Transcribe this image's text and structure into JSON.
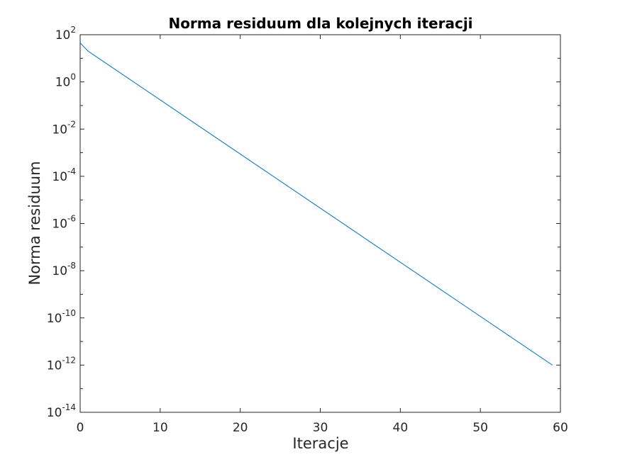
{
  "chart_data": {
    "type": "line",
    "title": "Norma residuum dla kolejnych iteracji",
    "xlabel": "Iteracje",
    "ylabel": "Norma residuum",
    "xlim": [
      0,
      60
    ],
    "ylim": [
      1e-14,
      100
    ],
    "yscale": "log",
    "grid": false,
    "legend": "none",
    "x_ticks": [
      0,
      10,
      20,
      30,
      40,
      50,
      60
    ],
    "y_ticks": [
      {
        "base": "10",
        "exp": "2",
        "value": 100
      },
      {
        "base": "10",
        "exp": "0",
        "value": 1
      },
      {
        "base": "10",
        "exp": "-2",
        "value": 0.01
      },
      {
        "base": "10",
        "exp": "-4",
        "value": 0.0001
      },
      {
        "base": "10",
        "exp": "-6",
        "value": 1e-06
      },
      {
        "base": "10",
        "exp": "-8",
        "value": 1e-08
      },
      {
        "base": "10",
        "exp": "-10",
        "value": 1e-10
      },
      {
        "base": "10",
        "exp": "-12",
        "value": 1e-12
      },
      {
        "base": "10",
        "exp": "-14",
        "value": 1e-14
      }
    ],
    "series": [
      {
        "color": "#0072bd",
        "x": [
          0,
          1,
          59
        ],
        "y": [
          45,
          20,
          1e-12
        ]
      }
    ]
  }
}
